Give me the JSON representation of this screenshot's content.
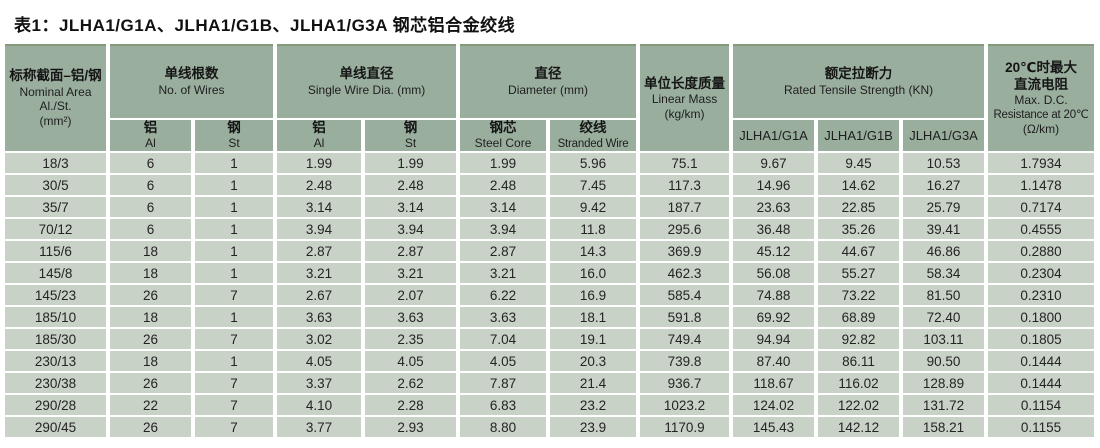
{
  "title": "表1：JLHA1/G1A、JLHA1/G1B、JLHA1/G3A 钢芯铝合金绞线",
  "colors": {
    "header_bg": "#9aae9e",
    "header_top_edge": "#87997c",
    "row_bg": "#c8d2c6",
    "page_bg": "#ffffff",
    "text": "#1c1c1c"
  },
  "header": {
    "nominal_area": {
      "zh": "标称截面–铝/钢",
      "en1": "Nominal Area",
      "en2": "Al./St.",
      "en3": "(mm²)"
    },
    "no_of_wires": {
      "zh": "单线根数",
      "en": "No. of Wires"
    },
    "single_wire_dia": {
      "zh": "单线直径",
      "en": "Single Wire Dia. (mm)"
    },
    "diameter": {
      "zh": "直径",
      "en": "Diameter (mm)"
    },
    "linear_mass": {
      "zh": "单位长度质量",
      "en1": "Linear Mass",
      "en2": "(kg/km)"
    },
    "tensile": {
      "zh": "额定拉断力",
      "en": "Rated Tensile Strength (KN)"
    },
    "resistance": {
      "zh1": "20℃时最大",
      "zh2": "直流电阻",
      "en1": "Max. D.C.",
      "en2": "Resistance at 20℃",
      "en3": "(Ω/km)"
    },
    "sub": {
      "al_wires": {
        "zh": "铝",
        "en": "Al"
      },
      "st_wires": {
        "zh": "钢",
        "en": "St"
      },
      "al_dia": {
        "zh": "铝",
        "en": "Al"
      },
      "st_dia": {
        "zh": "钢",
        "en": "St"
      },
      "steel_core": {
        "zh": "钢芯",
        "en": "Steel Core"
      },
      "stranded_wire": {
        "zh": "绞线",
        "en": "Stranded Wire"
      },
      "g1a": "JLHA1/G1A",
      "g1b": "JLHA1/G1B",
      "g3a": "JLHA1/G3A"
    }
  },
  "rows": [
    [
      "18/3",
      "6",
      "1",
      "1.99",
      "1.99",
      "1.99",
      "5.96",
      "75.1",
      "9.67",
      "9.45",
      "10.53",
      "1.7934"
    ],
    [
      "30/5",
      "6",
      "1",
      "2.48",
      "2.48",
      "2.48",
      "7.45",
      "117.3",
      "14.96",
      "14.62",
      "16.27",
      "1.1478"
    ],
    [
      "35/7",
      "6",
      "1",
      "3.14",
      "3.14",
      "3.14",
      "9.42",
      "187.7",
      "23.63",
      "22.85",
      "25.79",
      "0.7174"
    ],
    [
      "70/12",
      "6",
      "1",
      "3.94",
      "3.94",
      "3.94",
      "11.8",
      "295.6",
      "36.48",
      "35.26",
      "39.41",
      "0.4555"
    ],
    [
      "115/6",
      "18",
      "1",
      "2.87",
      "2.87",
      "2.87",
      "14.3",
      "369.9",
      "45.12",
      "44.67",
      "46.86",
      "0.2880"
    ],
    [
      "145/8",
      "18",
      "1",
      "3.21",
      "3.21",
      "3.21",
      "16.0",
      "462.3",
      "56.08",
      "55.27",
      "58.34",
      "0.2304"
    ],
    [
      "145/23",
      "26",
      "7",
      "2.67",
      "2.07",
      "6.22",
      "16.9",
      "585.4",
      "74.88",
      "73.22",
      "81.50",
      "0.2310"
    ],
    [
      "185/10",
      "18",
      "1",
      "3.63",
      "3.63",
      "3.63",
      "18.1",
      "591.8",
      "69.92",
      "68.89",
      "72.40",
      "0.1800"
    ],
    [
      "185/30",
      "26",
      "7",
      "3.02",
      "2.35",
      "7.04",
      "19.1",
      "749.4",
      "94.94",
      "92.82",
      "103.11",
      "0.1805"
    ],
    [
      "230/13",
      "18",
      "1",
      "4.05",
      "4.05",
      "4.05",
      "20.3",
      "739.8",
      "87.40",
      "86.11",
      "90.50",
      "0.1444"
    ],
    [
      "230/38",
      "26",
      "7",
      "3.37",
      "2.62",
      "7.87",
      "21.4",
      "936.7",
      "118.67",
      "116.02",
      "128.89",
      "0.1444"
    ],
    [
      "290/28",
      "22",
      "7",
      "4.10",
      "2.28",
      "6.83",
      "23.2",
      "1023.2",
      "124.02",
      "122.02",
      "131.72",
      "0.1154"
    ],
    [
      "290/45",
      "26",
      "7",
      "3.77",
      "2.93",
      "8.80",
      "23.9",
      "1170.9",
      "145.43",
      "142.12",
      "158.21",
      "0.1155"
    ]
  ]
}
